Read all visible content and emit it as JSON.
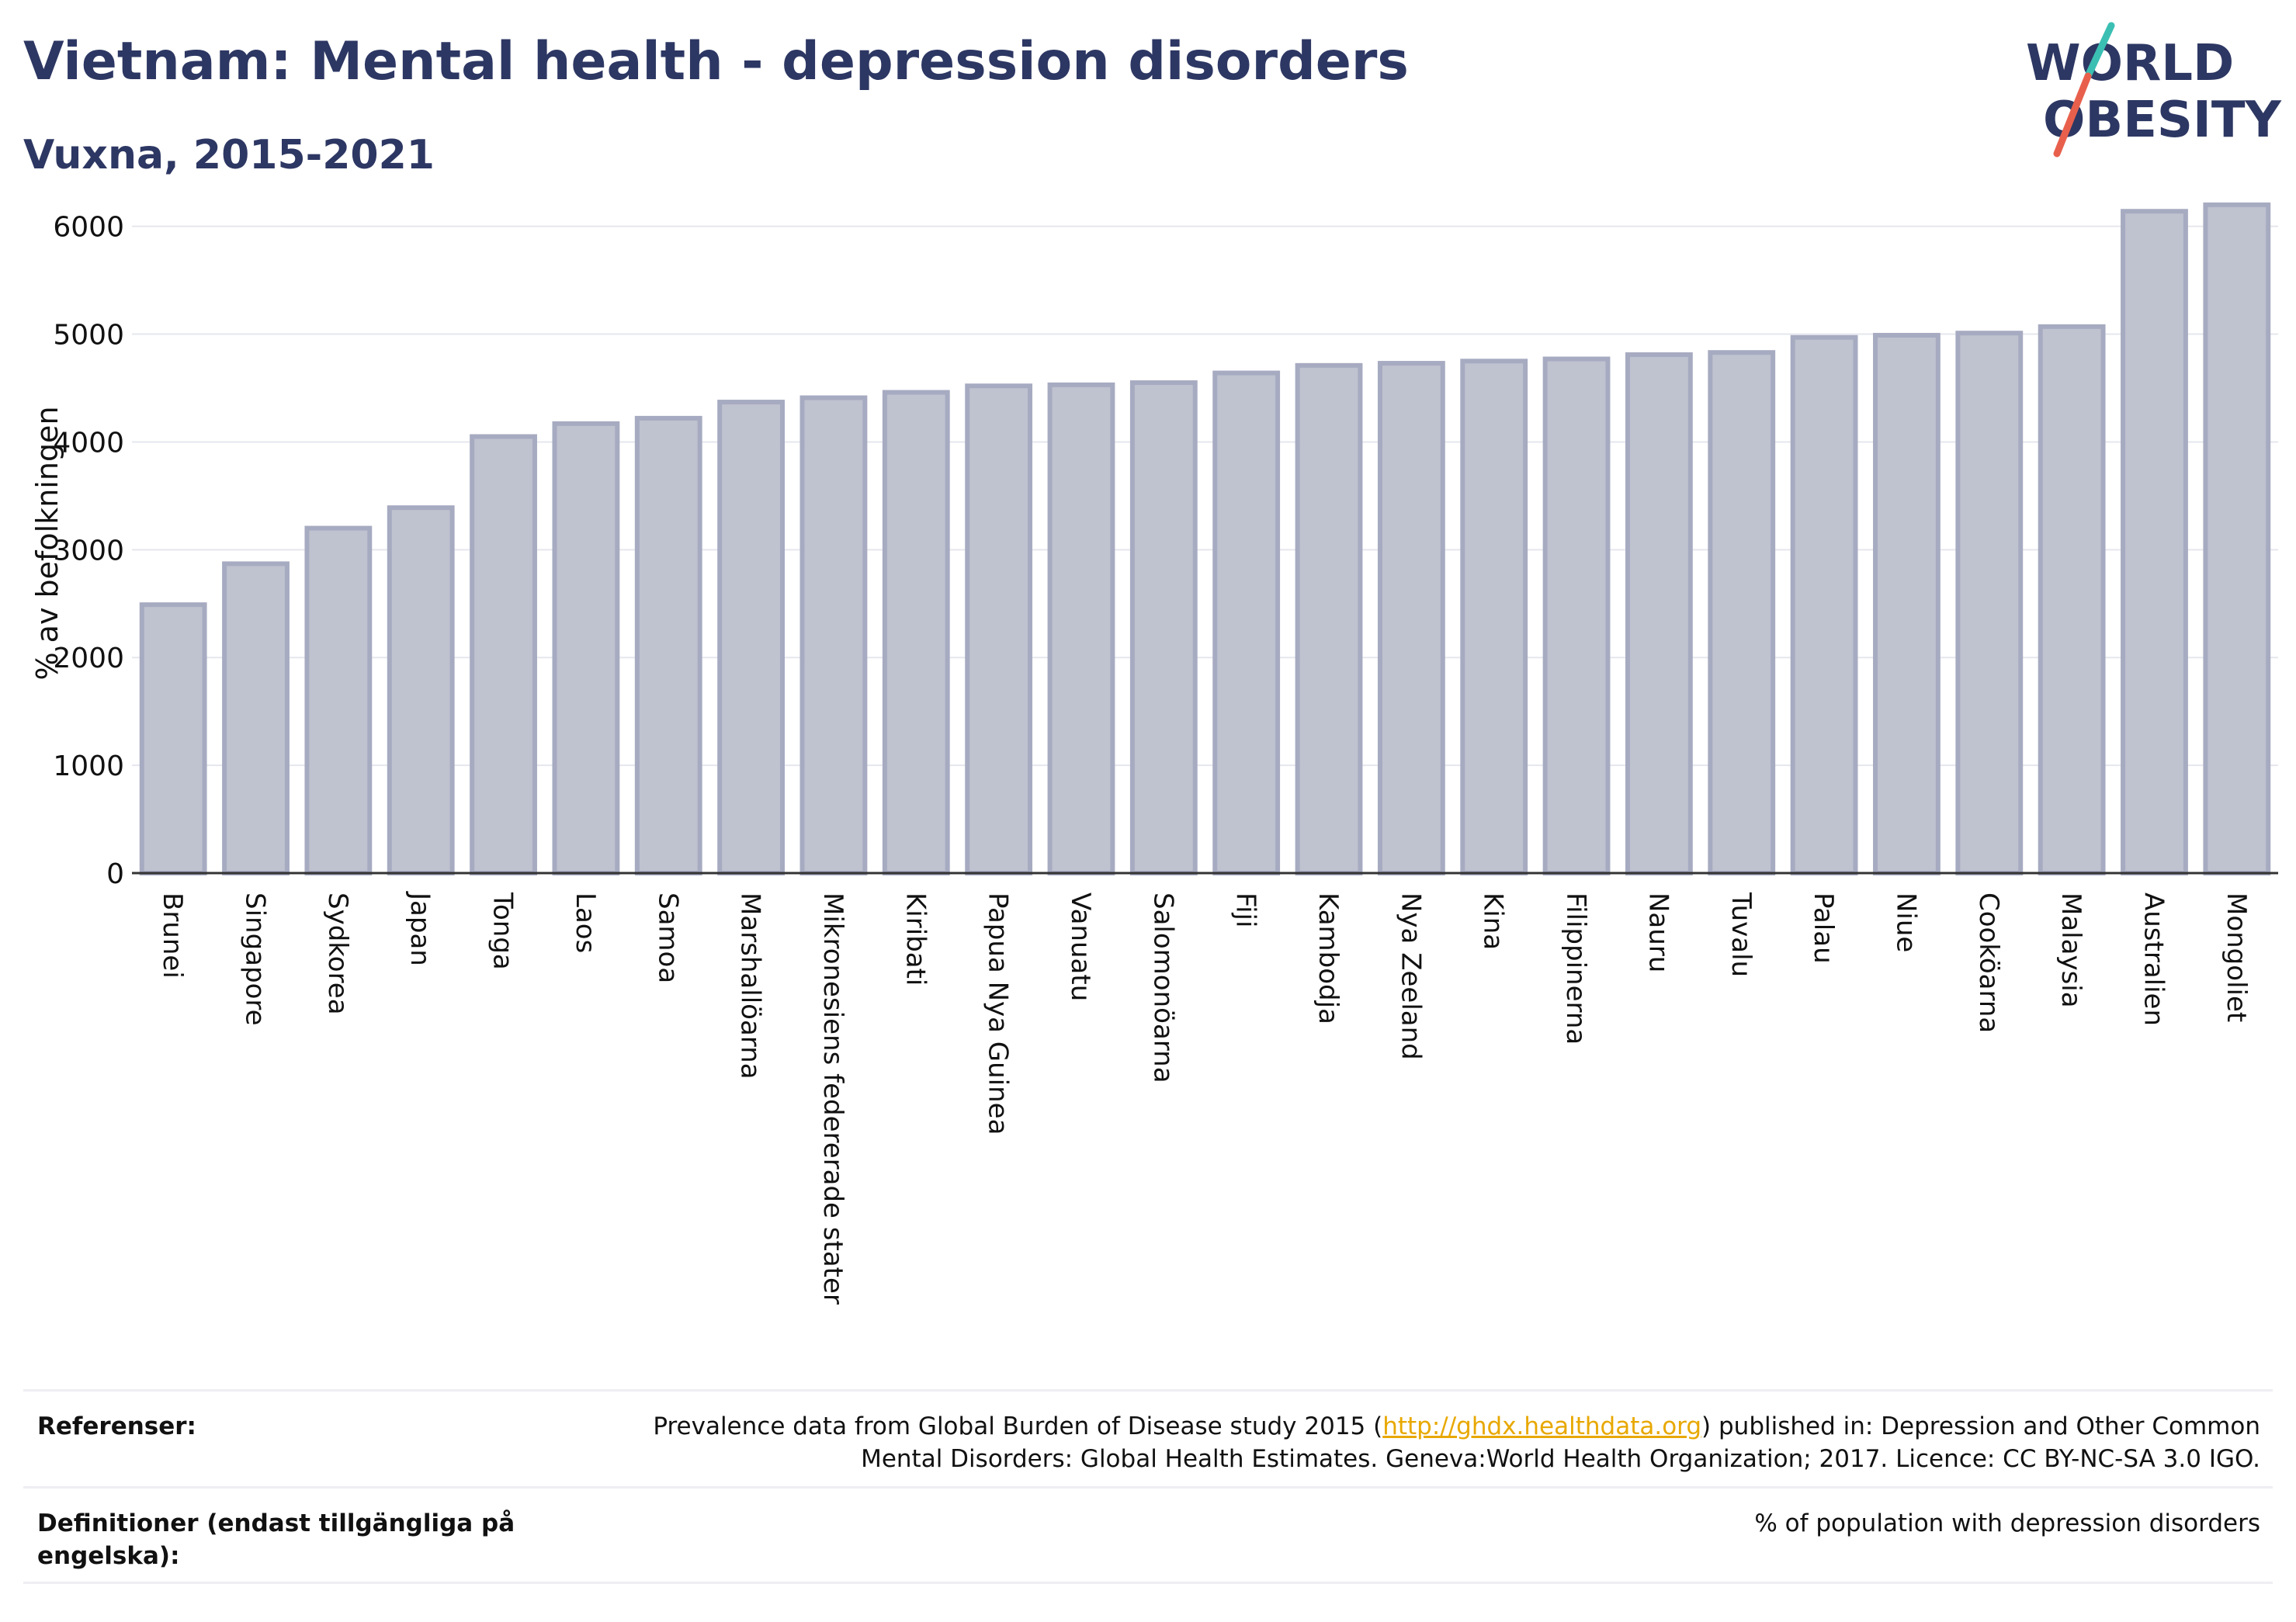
{
  "header": {
    "title": "Vietnam: Mental health - depression disorders",
    "subtitle": "Vuxna, 2015-2021"
  },
  "logo": {
    "word1": "WORLD",
    "word2": "OBESITY",
    "colors": {
      "text": "#2d3763",
      "accent_teal": "#3bbfb3",
      "accent_red": "#e8604c"
    }
  },
  "chart_data": {
    "type": "bar",
    "ylabel": "% av befolkningen",
    "xlabel": "",
    "ylim": [
      0,
      6300
    ],
    "yticks": [
      0,
      1000,
      2000,
      3000,
      4000,
      5000,
      6000
    ],
    "grid": true,
    "bar_fill": "#bfc2cf",
    "bar_stroke": "#a7abc1",
    "categories": [
      "Brunei",
      "Singapore",
      "Sydkorea",
      "Japan",
      "Tonga",
      "Laos",
      "Samoa",
      "Marshallöarna",
      "Mikronesiens federerade stater",
      "Kiribati",
      "Papua Nya Guinea",
      "Vanuatu",
      "Salomonöarna",
      "Fiji",
      "Kambodja",
      "Nya Zeeland",
      "Kina",
      "Filippinerna",
      "Nauru",
      "Tuvalu",
      "Palau",
      "Niue",
      "Cooköarna",
      "Malaysia",
      "Australien",
      "Mongoliet"
    ],
    "values": [
      2490,
      2870,
      3200,
      3390,
      4050,
      4170,
      4220,
      4370,
      4410,
      4460,
      4520,
      4530,
      4550,
      4640,
      4710,
      4730,
      4750,
      4770,
      4810,
      4830,
      4970,
      4990,
      5010,
      5070,
      6140,
      6200
    ]
  },
  "references": {
    "label": "Referenser:",
    "text_before": "Prevalence data from Global Burden of Disease study 2015 (",
    "link": "http://ghdx.healthdata.org",
    "text_after": ") published in: Depression and Other Common",
    "line2": "Mental Disorders: Global Health Estimates. Geneva:World Health Organization; 2017. Licence: CC BY-NC-SA 3.0 IGO."
  },
  "definitions": {
    "label_line1": "Definitioner (endast tillgängliga på",
    "label_line2": "engelska):",
    "text": "% of population with depression disorders"
  }
}
